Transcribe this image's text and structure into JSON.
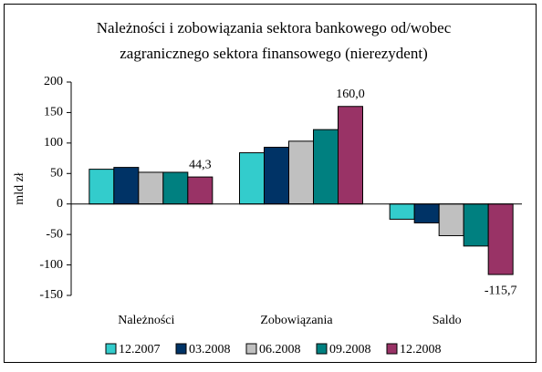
{
  "chart_data": {
    "type": "bar",
    "title": [
      "Należności i zobowiązania sektora bankowego od/wobec",
      "zagranicznego sektora finansowego (nierezydent)"
    ],
    "y_label": "mld zł",
    "categories": [
      "Należności",
      "Zobowiązania",
      "Saldo"
    ],
    "series": [
      {
        "name": "12.2007",
        "color": "#33cccc",
        "values": [
          57,
          84,
          -25
        ]
      },
      {
        "name": "03.2008",
        "color": "#003366",
        "values": [
          60,
          93,
          -31
        ]
      },
      {
        "name": "06.2008",
        "color": "#c0c0c0",
        "values": [
          52,
          103,
          -52
        ]
      },
      {
        "name": "09.2008",
        "color": "#008080",
        "values": [
          52,
          122,
          -69
        ]
      },
      {
        "name": "12.2008",
        "color": "#993366",
        "values": [
          44.3,
          160.0,
          -115.7
        ],
        "value_labels": [
          "44,3",
          "160,0",
          "-115,7"
        ]
      }
    ],
    "ylim": [
      -150,
      200
    ],
    "yticks": [
      -150,
      -100,
      -50,
      0,
      50,
      100,
      150,
      200
    ],
    "legend": "bottom"
  }
}
